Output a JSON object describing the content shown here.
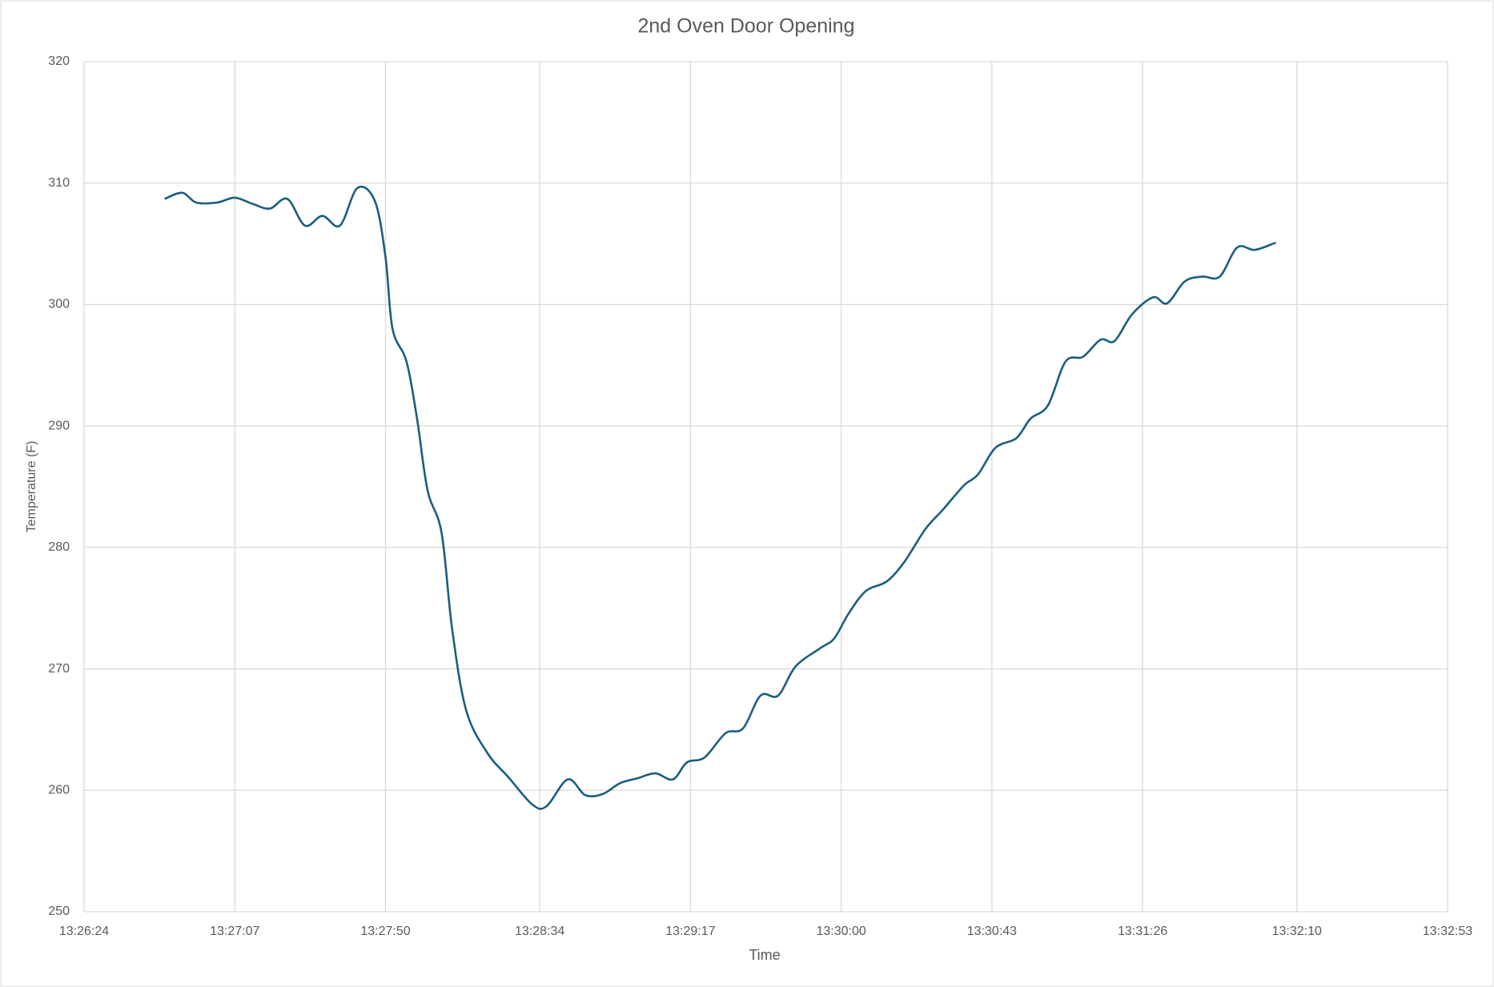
{
  "chart_data": {
    "type": "line",
    "title": "2nd Oven Door Opening",
    "x_label": "Time",
    "y_label": "Temperature (F)",
    "x": [
      48407,
      48412,
      48416,
      48422,
      48427,
      48432,
      48437,
      48442,
      48447,
      48452,
      48457,
      48462,
      48467,
      48470,
      48472,
      48476,
      48479,
      48482,
      48486,
      48489,
      48493,
      48499,
      48505,
      48512,
      48516,
      48522,
      48527,
      48532,
      48537,
      48542,
      48547,
      48552,
      48556,
      48561,
      48567,
      48572,
      48577,
      48582,
      48587,
      48594,
      48598,
      48602,
      48607,
      48613,
      48618,
      48624,
      48629,
      48635,
      48639,
      48644,
      48650,
      48654,
      48659,
      48664,
      48669,
      48674,
      48678,
      48683,
      48689,
      48693,
      48698,
      48703,
      48708,
      48713,
      48718,
      48724
    ],
    "series": [
      {
        "name": "Temperature",
        "color": "#1a5e7e",
        "values": [
          308.7,
          309.2,
          308.4,
          308.4,
          308.8,
          308.3,
          307.9,
          308.7,
          306.5,
          307.3,
          306.5,
          309.6,
          308.5,
          303.9,
          298.0,
          295.3,
          290.6,
          284.7,
          281.2,
          273.3,
          266.6,
          263.1,
          261.1,
          258.8,
          258.7,
          260.9,
          259.6,
          259.7,
          260.6,
          261.0,
          261.4,
          260.9,
          262.3,
          262.7,
          264.7,
          265.1,
          267.8,
          267.8,
          270.2,
          271.7,
          272.5,
          274.5,
          276.4,
          277.2,
          278.8,
          281.5,
          283.1,
          285.1,
          286.0,
          288.2,
          289.0,
          290.6,
          291.7,
          295.3,
          295.7,
          297.1,
          297.0,
          299.2,
          300.6,
          300.1,
          301.9,
          302.3,
          302.3,
          304.7,
          304.5,
          305.1
        ]
      }
    ],
    "xlim": [
      48384,
      48773
    ],
    "xticks": [
      {
        "value": 48384,
        "label": "13:26:24"
      },
      {
        "value": 48427,
        "label": "13:27:07"
      },
      {
        "value": 48470,
        "label": "13:27:50"
      },
      {
        "value": 48514,
        "label": "13:28:34"
      },
      {
        "value": 48557,
        "label": "13:29:17"
      },
      {
        "value": 48600,
        "label": "13:30:00"
      },
      {
        "value": 48643,
        "label": "13:30:43"
      },
      {
        "value": 48686,
        "label": "13:31:26"
      },
      {
        "value": 48730,
        "label": "13:32:10"
      },
      {
        "value": 48773,
        "label": "13:32:53"
      }
    ],
    "ylim": [
      250,
      320
    ],
    "yticks": [
      250,
      260,
      270,
      280,
      290,
      300,
      310,
      320
    ],
    "grid": true
  }
}
